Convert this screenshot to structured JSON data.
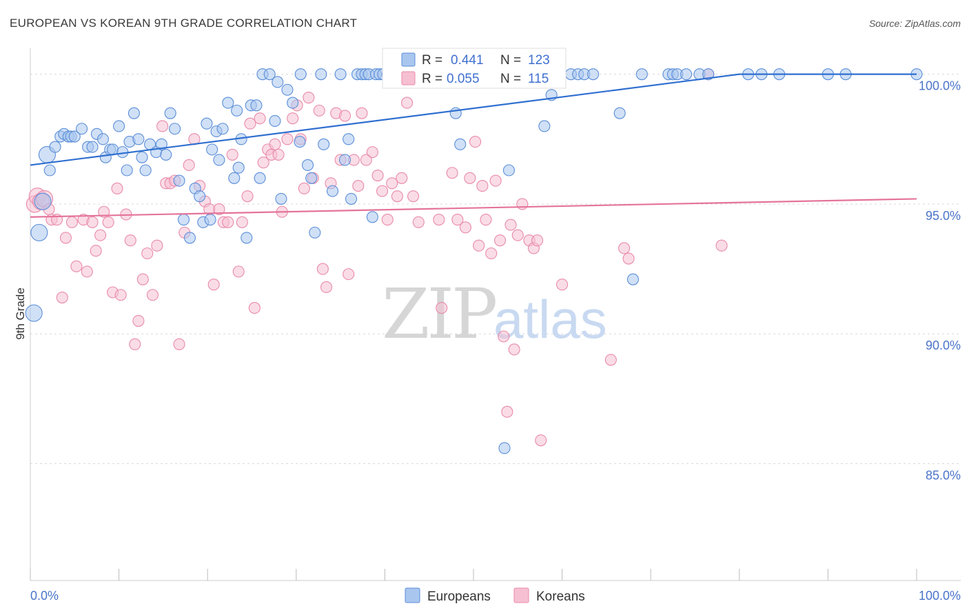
{
  "title": "EUROPEAN VS KOREAN 9TH GRADE CORRELATION CHART",
  "source": "Source: ZipAtlas.com",
  "watermark": {
    "zip": "ZIP",
    "atlas": "atlas"
  },
  "colors": {
    "europeans_fill": "#a9c6ef",
    "europeans_stroke": "#5b8ed8",
    "europeans_line": "#2f6fd0",
    "koreans_fill": "#f6c0d2",
    "koreans_stroke": "#e88aaa",
    "koreans_line": "#e4739b",
    "grid": "#d9d9d9",
    "tick_label": "#4a74c9"
  },
  "stats": {
    "europeans": {
      "r_label": "R =",
      "r_value": "0.441",
      "n_label": "N =",
      "n_value": "123"
    },
    "koreans": {
      "r_label": "R =",
      "r_value": "0.055",
      "n_label": "N =",
      "n_value": "115"
    }
  },
  "legend": {
    "europeans": "Europeans",
    "koreans": "Koreans"
  },
  "chart_data": {
    "type": "scatter",
    "title": "EUROPEAN VS KOREAN 9TH GRADE CORRELATION CHART",
    "xlabel": "",
    "ylabel": "9th Grade",
    "xlim": [
      0,
      100
    ],
    "ylim": [
      80.5,
      101.0
    ],
    "x_tick_labels": [
      "0.0%",
      "100.0%"
    ],
    "y_ticks": [
      85,
      90,
      95,
      100
    ],
    "y_tick_labels": [
      "85.0%",
      "90.0%",
      "95.0%",
      "100.0%"
    ],
    "grid": true,
    "series": [
      {
        "name": "Europeans",
        "trend": {
          "x": [
            0,
            80,
            100
          ],
          "y": [
            96.5,
            100.0,
            100.0
          ]
        },
        "points": [
          [
            0.4,
            90.8
          ],
          [
            1.0,
            93.9
          ],
          [
            1.4,
            95.1
          ],
          [
            1.9,
            96.9
          ],
          [
            2.2,
            96.3
          ],
          [
            2.8,
            97.2
          ],
          [
            3.4,
            97.6
          ],
          [
            3.8,
            97.7
          ],
          [
            4.3,
            97.6
          ],
          [
            4.6,
            97.6
          ],
          [
            5.0,
            97.6
          ],
          [
            5.8,
            97.9
          ],
          [
            6.5,
            97.2
          ],
          [
            7.0,
            97.2
          ],
          [
            7.5,
            97.7
          ],
          [
            8.2,
            97.5
          ],
          [
            8.5,
            96.8
          ],
          [
            9.0,
            97.1
          ],
          [
            9.3,
            97.1
          ],
          [
            10.0,
            98.0
          ],
          [
            10.4,
            97.0
          ],
          [
            10.9,
            96.3
          ],
          [
            11.2,
            97.4
          ],
          [
            11.7,
            98.5
          ],
          [
            12.2,
            97.5
          ],
          [
            12.6,
            96.8
          ],
          [
            13.0,
            96.3
          ],
          [
            13.5,
            97.3
          ],
          [
            14.2,
            97.0
          ],
          [
            14.8,
            97.3
          ],
          [
            15.3,
            96.9
          ],
          [
            15.8,
            98.5
          ],
          [
            16.3,
            97.9
          ],
          [
            16.8,
            95.9
          ],
          [
            17.3,
            94.4
          ],
          [
            18.0,
            93.7
          ],
          [
            18.6,
            95.6
          ],
          [
            19.1,
            95.3
          ],
          [
            19.5,
            94.3
          ],
          [
            19.9,
            98.1
          ],
          [
            20.5,
            97.1
          ],
          [
            21.0,
            97.8
          ],
          [
            21.3,
            96.7
          ],
          [
            21.7,
            97.9
          ],
          [
            22.3,
            98.9
          ],
          [
            23.0,
            96.0
          ],
          [
            23.3,
            98.6
          ],
          [
            23.8,
            97.5
          ],
          [
            24.4,
            93.7
          ],
          [
            24.9,
            98.8
          ],
          [
            25.5,
            98.8
          ],
          [
            25.9,
            96.0
          ],
          [
            26.2,
            100.0
          ],
          [
            27.0,
            100.0
          ],
          [
            27.6,
            98.2
          ],
          [
            27.9,
            99.7
          ],
          [
            28.3,
            95.2
          ],
          [
            29.0,
            99.4
          ],
          [
            29.6,
            98.9
          ],
          [
            30.5,
            100.0
          ],
          [
            31.3,
            96.5
          ],
          [
            31.7,
            96.0
          ],
          [
            32.1,
            93.9
          ],
          [
            32.8,
            100.0
          ],
          [
            33.1,
            97.3
          ],
          [
            34.1,
            95.5
          ],
          [
            35.0,
            100.0
          ],
          [
            35.5,
            96.7
          ],
          [
            35.9,
            97.5
          ],
          [
            36.2,
            95.2
          ],
          [
            36.9,
            100.0
          ],
          [
            37.4,
            100.0
          ],
          [
            37.8,
            100.0
          ],
          [
            38.2,
            100.0
          ],
          [
            38.6,
            94.5
          ],
          [
            39.0,
            100.0
          ],
          [
            39.4,
            100.0
          ],
          [
            39.8,
            100.0
          ],
          [
            40.3,
            100.0
          ],
          [
            40.8,
            100.0
          ],
          [
            41.5,
            100.0
          ],
          [
            42.0,
            100.0
          ],
          [
            42.6,
            100.0
          ],
          [
            43.3,
            100.0
          ],
          [
            44.0,
            100.0
          ],
          [
            44.8,
            100.0
          ],
          [
            45.5,
            100.0
          ],
          [
            46.2,
            100.0
          ],
          [
            47.0,
            100.0
          ],
          [
            48.0,
            98.5
          ],
          [
            48.5,
            97.3
          ],
          [
            49.5,
            100.0
          ],
          [
            50.5,
            100.0
          ],
          [
            51.3,
            100.0
          ],
          [
            52.0,
            100.0
          ],
          [
            52.7,
            100.0
          ],
          [
            53.5,
            100.0
          ],
          [
            54.2,
            100.0
          ],
          [
            55.0,
            100.0
          ],
          [
            55.8,
            100.0
          ],
          [
            56.5,
            100.0
          ],
          [
            57.5,
            100.0
          ],
          [
            58.5,
            100.0
          ],
          [
            54.0,
            96.3
          ],
          [
            53.5,
            85.6
          ],
          [
            58.0,
            98.0
          ],
          [
            58.8,
            99.2
          ],
          [
            61.0,
            100.0
          ],
          [
            61.8,
            100.0
          ],
          [
            62.5,
            100.0
          ],
          [
            63.5,
            100.0
          ],
          [
            66.5,
            98.5
          ],
          [
            68.0,
            92.1
          ],
          [
            69.0,
            100.0
          ],
          [
            72.0,
            100.0
          ],
          [
            72.5,
            100.0
          ],
          [
            73.0,
            100.0
          ],
          [
            74.0,
            100.0
          ],
          [
            75.5,
            100.0
          ],
          [
            76.5,
            100.0
          ],
          [
            81.0,
            100.0
          ],
          [
            82.5,
            100.0
          ],
          [
            84.5,
            100.0
          ],
          [
            90.0,
            100.0
          ],
          [
            92.0,
            100.0
          ],
          [
            100.0,
            100.0
          ],
          [
            20.3,
            94.4
          ],
          [
            23.5,
            96.4
          ],
          [
            30.4,
            97.4
          ]
        ]
      },
      {
        "name": "Koreans",
        "trend": {
          "x": [
            0,
            100
          ],
          "y": [
            94.5,
            95.2
          ]
        },
        "points": [
          [
            0.5,
            95.0
          ],
          [
            0.8,
            95.3
          ],
          [
            1.2,
            95.1
          ],
          [
            1.6,
            95.2
          ],
          [
            2.1,
            94.8
          ],
          [
            2.4,
            94.4
          ],
          [
            3.0,
            94.4
          ],
          [
            3.6,
            91.4
          ],
          [
            4.0,
            93.7
          ],
          [
            4.7,
            94.3
          ],
          [
            5.2,
            92.6
          ],
          [
            6.0,
            94.4
          ],
          [
            6.4,
            92.4
          ],
          [
            7.0,
            94.3
          ],
          [
            7.4,
            93.2
          ],
          [
            7.9,
            93.8
          ],
          [
            8.3,
            94.7
          ],
          [
            8.8,
            94.3
          ],
          [
            9.3,
            91.6
          ],
          [
            9.8,
            95.6
          ],
          [
            10.2,
            91.5
          ],
          [
            10.8,
            94.6
          ],
          [
            11.3,
            93.6
          ],
          [
            11.8,
            89.6
          ],
          [
            12.2,
            90.5
          ],
          [
            12.7,
            92.1
          ],
          [
            13.2,
            93.1
          ],
          [
            13.8,
            91.5
          ],
          [
            14.3,
            93.4
          ],
          [
            14.9,
            98.0
          ],
          [
            15.3,
            95.8
          ],
          [
            15.8,
            95.8
          ],
          [
            16.3,
            95.9
          ],
          [
            16.8,
            89.6
          ],
          [
            17.4,
            93.9
          ],
          [
            17.9,
            96.5
          ],
          [
            18.5,
            97.5
          ],
          [
            19.1,
            95.7
          ],
          [
            19.7,
            95.1
          ],
          [
            20.2,
            94.8
          ],
          [
            20.7,
            91.9
          ],
          [
            21.3,
            94.8
          ],
          [
            21.8,
            94.3
          ],
          [
            22.3,
            94.3
          ],
          [
            22.8,
            96.9
          ],
          [
            23.5,
            92.4
          ],
          [
            23.9,
            94.3
          ],
          [
            24.5,
            95.3
          ],
          [
            24.8,
            98.1
          ],
          [
            25.3,
            91.0
          ],
          [
            25.9,
            98.3
          ],
          [
            26.3,
            96.6
          ],
          [
            26.8,
            97.1
          ],
          [
            27.2,
            96.9
          ],
          [
            27.6,
            97.3
          ],
          [
            28.0,
            96.9
          ],
          [
            28.4,
            94.7
          ],
          [
            29.0,
            97.5
          ],
          [
            29.6,
            98.3
          ],
          [
            30.1,
            98.8
          ],
          [
            30.5,
            97.5
          ],
          [
            30.9,
            95.6
          ],
          [
            31.4,
            99.1
          ],
          [
            31.9,
            96.0
          ],
          [
            32.6,
            98.6
          ],
          [
            33.0,
            92.5
          ],
          [
            33.4,
            91.8
          ],
          [
            33.9,
            95.8
          ],
          [
            34.5,
            98.5
          ],
          [
            35.0,
            96.7
          ],
          [
            35.5,
            98.4
          ],
          [
            35.9,
            92.3
          ],
          [
            36.5,
            96.7
          ],
          [
            37.0,
            95.7
          ],
          [
            37.4,
            98.5
          ],
          [
            37.9,
            96.7
          ],
          [
            38.6,
            97.0
          ],
          [
            39.2,
            96.1
          ],
          [
            39.7,
            95.5
          ],
          [
            40.3,
            94.4
          ],
          [
            40.8,
            95.8
          ],
          [
            41.4,
            95.3
          ],
          [
            41.9,
            96.0
          ],
          [
            42.5,
            98.9
          ],
          [
            43.2,
            95.3
          ],
          [
            43.8,
            94.3
          ],
          [
            44.2,
            100.0
          ],
          [
            45.0,
            100.0
          ],
          [
            45.6,
            100.0
          ],
          [
            46.1,
            94.4
          ],
          [
            46.4,
            91.0
          ],
          [
            47.0,
            100.0
          ],
          [
            47.6,
            96.2
          ],
          [
            48.2,
            94.4
          ],
          [
            48.7,
            100.0
          ],
          [
            49.1,
            94.1
          ],
          [
            49.6,
            96.0
          ],
          [
            50.2,
            97.4
          ],
          [
            50.6,
            93.4
          ],
          [
            51.0,
            95.7
          ],
          [
            51.4,
            94.4
          ],
          [
            52.0,
            93.1
          ],
          [
            52.5,
            95.9
          ],
          [
            53.0,
            93.6
          ],
          [
            53.4,
            89.9
          ],
          [
            53.8,
            87.0
          ],
          [
            54.2,
            94.2
          ],
          [
            54.6,
            89.4
          ],
          [
            55.0,
            93.8
          ],
          [
            55.5,
            95.0
          ],
          [
            56.3,
            93.6
          ],
          [
            56.8,
            93.3
          ],
          [
            57.2,
            93.6
          ],
          [
            57.6,
            85.9
          ],
          [
            60.0,
            91.9
          ],
          [
            65.5,
            89.0
          ],
          [
            67.0,
            93.3
          ],
          [
            67.5,
            92.9
          ],
          [
            76.5,
            100.0
          ],
          [
            78.0,
            93.4
          ]
        ]
      }
    ]
  }
}
